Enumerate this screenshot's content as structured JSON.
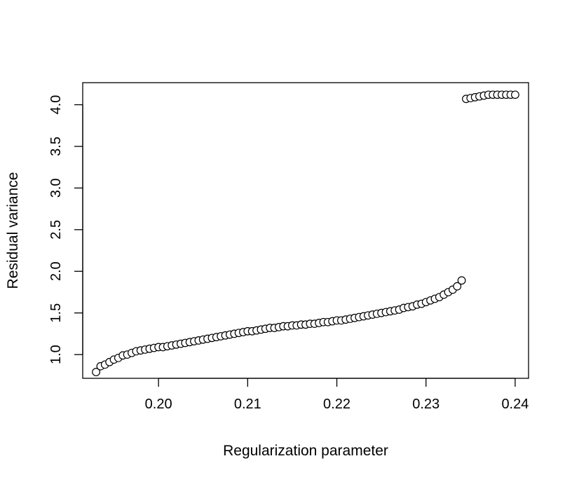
{
  "chart_data": {
    "type": "scatter",
    "title": "",
    "xlabel": "Regularization parameter",
    "ylabel": "Residual variance",
    "xlim": [
      0.1915,
      0.2415
    ],
    "ylim": [
      0.715,
      4.265
    ],
    "xticks": [
      0.2,
      0.21,
      0.22,
      0.23,
      0.24
    ],
    "xtick_labels": [
      "0.20",
      "0.21",
      "0.22",
      "0.23",
      "0.24"
    ],
    "yticks": [
      1.0,
      1.5,
      2.0,
      2.5,
      3.0,
      3.5,
      4.0
    ],
    "ytick_labels": [
      "1.0",
      "1.5",
      "2.0",
      "2.5",
      "3.0",
      "3.5",
      "4.0"
    ],
    "grid": false,
    "marker": "open-circle",
    "marker_color": "#000000",
    "series": [
      {
        "x": [
          0.193,
          0.1935,
          0.194,
          0.1945,
          0.195,
          0.1955,
          0.196,
          0.1965,
          0.197,
          0.1975,
          0.198,
          0.1985,
          0.199,
          0.1995,
          0.2,
          0.2005,
          0.201,
          0.2015,
          0.202,
          0.2025,
          0.203,
          0.2035,
          0.204,
          0.2045,
          0.205,
          0.2055,
          0.206,
          0.2065,
          0.207,
          0.2075,
          0.208,
          0.2085,
          0.209,
          0.2095,
          0.21,
          0.2105,
          0.211,
          0.2115,
          0.212,
          0.2125,
          0.213,
          0.2135,
          0.214,
          0.2145,
          0.215,
          0.2155,
          0.216,
          0.2165,
          0.217,
          0.2175,
          0.218,
          0.2185,
          0.219,
          0.2195,
          0.22,
          0.2205,
          0.221,
          0.2215,
          0.222,
          0.2225,
          0.223,
          0.2235,
          0.224,
          0.2245,
          0.225,
          0.2255,
          0.226,
          0.2265,
          0.227,
          0.2275,
          0.228,
          0.2285,
          0.229,
          0.2295,
          0.23,
          0.2305,
          0.231,
          0.2315,
          0.232,
          0.2325,
          0.233,
          0.2335,
          0.234,
          0.2345,
          0.235,
          0.2355,
          0.236,
          0.2365,
          0.237,
          0.2375,
          0.238,
          0.2385,
          0.239,
          0.2395,
          0.24
        ],
        "y": [
          0.79,
          0.86,
          0.88,
          0.91,
          0.94,
          0.96,
          0.99,
          1.0,
          1.02,
          1.04,
          1.05,
          1.06,
          1.07,
          1.08,
          1.09,
          1.09,
          1.1,
          1.11,
          1.12,
          1.13,
          1.14,
          1.15,
          1.16,
          1.17,
          1.18,
          1.19,
          1.2,
          1.21,
          1.22,
          1.23,
          1.24,
          1.25,
          1.26,
          1.27,
          1.28,
          1.28,
          1.29,
          1.3,
          1.31,
          1.32,
          1.32,
          1.33,
          1.34,
          1.34,
          1.35,
          1.35,
          1.36,
          1.36,
          1.37,
          1.37,
          1.38,
          1.39,
          1.39,
          1.4,
          1.41,
          1.41,
          1.42,
          1.43,
          1.44,
          1.45,
          1.46,
          1.47,
          1.48,
          1.49,
          1.5,
          1.51,
          1.52,
          1.53,
          1.54,
          1.56,
          1.57,
          1.58,
          1.6,
          1.61,
          1.63,
          1.65,
          1.67,
          1.69,
          1.72,
          1.75,
          1.78,
          1.82,
          1.89,
          4.07,
          4.08,
          4.09,
          4.1,
          4.11,
          4.12,
          4.12,
          4.12,
          4.12,
          4.12,
          4.12,
          4.12
        ]
      }
    ]
  }
}
